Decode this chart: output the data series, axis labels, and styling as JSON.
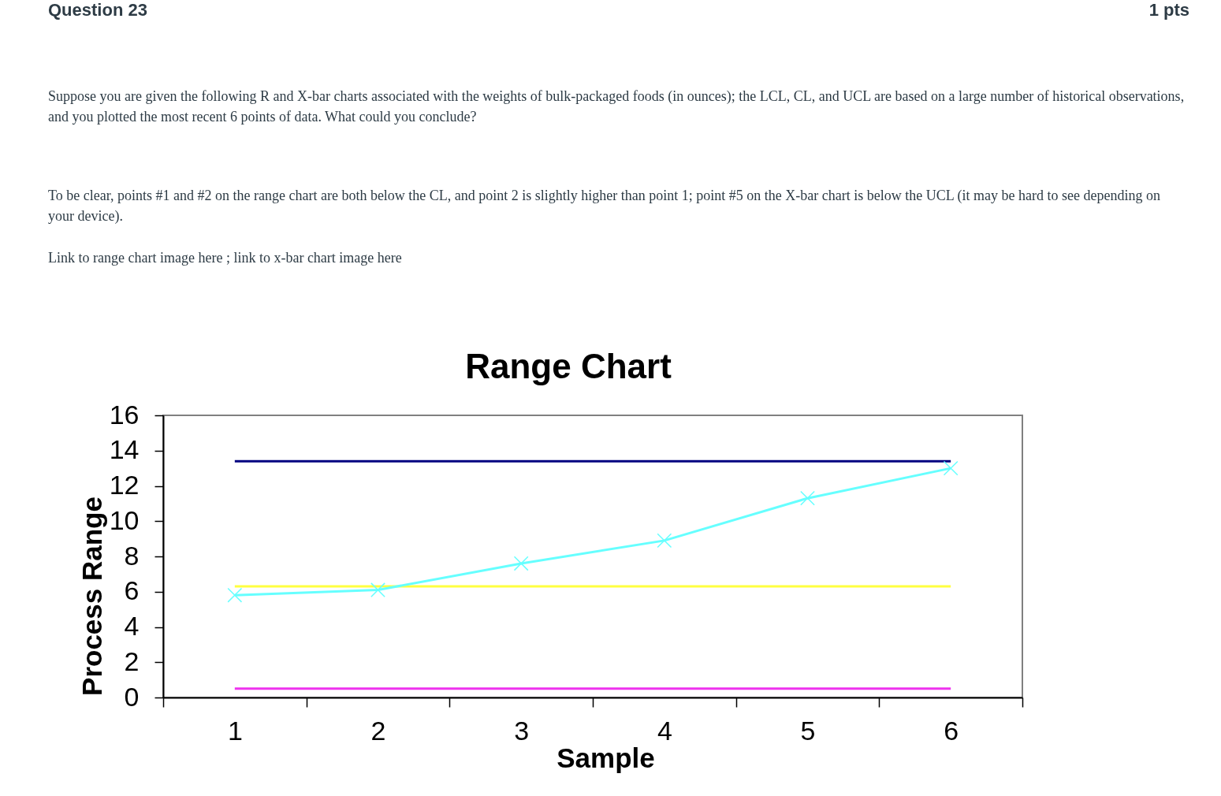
{
  "chart_data": {
    "type": "line",
    "title": "Range Chart",
    "xlabel": "Sample",
    "ylabel": "Process Range",
    "categories": [
      "1",
      "2",
      "3",
      "4",
      "5",
      "6"
    ],
    "series": [
      {
        "color": "#000080",
        "values": [
          13.4,
          13.4,
          13.4,
          13.4,
          13.4,
          13.4
        ],
        "marker": "none"
      },
      {
        "color": "#ffff40",
        "values": [
          6.3,
          6.3,
          6.3,
          6.3,
          6.3,
          6.3
        ],
        "marker": "none"
      },
      {
        "color": "#ee33ee",
        "values": [
          0.5,
          0.5,
          0.5,
          0.5,
          0.5,
          0.5
        ],
        "marker": "none"
      },
      {
        "color": "#66ffff",
        "values": [
          5.8,
          6.1,
          7.6,
          8.9,
          11.3,
          13.0
        ],
        "marker": "cross"
      }
    ],
    "ylim": [
      0,
      16
    ],
    "yticks": [
      0,
      2,
      4,
      6,
      8,
      10,
      12,
      14,
      16
    ],
    "annotations": [
      "Question 23",
      "1 pts",
      "Suppose you are given the following R and X-bar charts associated with the weights of bulk-packaged foods (in ounces); the LCL, CL, and UCL are based on a large number of historical observations, and you plotted the most recent 6 points of data. What could you conclude?",
      "To be clear, points #1 and #2 on the range chart are both below the CL, and point 2 is slightly higher than point 1; point #5 on the X-bar chart is below the UCL (it may be hard to see depending on your device).",
      "Link to range chart image here ; link to x-bar chart image here"
    ]
  }
}
